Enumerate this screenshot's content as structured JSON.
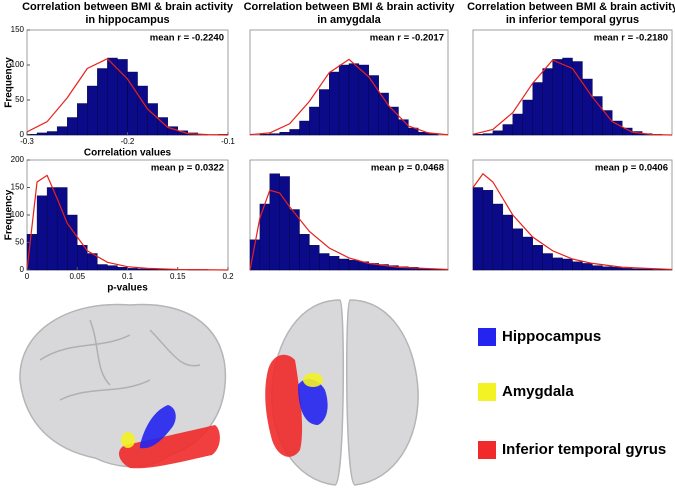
{
  "chart_data": [
    {
      "type": "histogram",
      "title": [
        "Correlation between BMI & brain activity",
        "in hippocampus"
      ],
      "annotation": "mean r = -0.2240",
      "xlabel": "Correlation values",
      "ylabel": "Frequency",
      "bins": [
        -0.3,
        -0.29,
        -0.28,
        -0.27,
        -0.26,
        -0.25,
        -0.24,
        -0.23,
        -0.22,
        -0.21,
        -0.2,
        -0.19,
        -0.18,
        -0.17,
        -0.16,
        -0.15,
        -0.14,
        -0.13,
        -0.12,
        -0.11,
        -0.1
      ],
      "values": [
        1,
        3,
        5,
        12,
        25,
        45,
        70,
        95,
        110,
        108,
        90,
        70,
        45,
        25,
        12,
        6,
        3,
        1,
        0,
        1
      ],
      "color": "#0b0b8a",
      "fit_x": [
        -0.3,
        -0.28,
        -0.26,
        -0.24,
        -0.22,
        -0.2,
        -0.18,
        -0.16,
        -0.14,
        -0.12,
        -0.1
      ],
      "fit_values": [
        4.5,
        19,
        53,
        95,
        109,
        80,
        37,
        11,
        2,
        0.5,
        0
      ],
      "fit_color": "#e8201a",
      "xlim": [
        -0.3,
        -0.1
      ],
      "ylim": [
        0,
        150
      ],
      "xticks": [
        -0.3,
        -0.2,
        -0.1
      ],
      "yticks": [
        0,
        50,
        100,
        150
      ]
    },
    {
      "type": "histogram",
      "title": [
        "Correlation between BMI & brain activity",
        "in amygdala"
      ],
      "annotation": "mean r = -0.2017",
      "bins": [
        -0.3,
        -0.29,
        -0.28,
        -0.27,
        -0.26,
        -0.25,
        -0.24,
        -0.23,
        -0.22,
        -0.21,
        -0.2,
        -0.19,
        -0.18,
        -0.17,
        -0.16,
        -0.15,
        -0.14,
        -0.13,
        -0.12,
        -0.11,
        -0.1
      ],
      "values": [
        0,
        1,
        2,
        4,
        8,
        20,
        40,
        65,
        90,
        100,
        102,
        100,
        85,
        60,
        40,
        22,
        10,
        4,
        2,
        0
      ],
      "color": "#0b0b8a",
      "fit_x": [
        -0.3,
        -0.28,
        -0.26,
        -0.24,
        -0.22,
        -0.2,
        -0.18,
        -0.16,
        -0.14,
        -0.12,
        -0.1
      ],
      "fit_values": [
        0.5,
        3,
        16,
        48,
        89,
        108,
        83,
        42,
        13,
        3,
        0.4
      ],
      "fit_color": "#e8201a",
      "xlim": [
        -0.3,
        -0.1
      ],
      "ylim": [
        0,
        150
      ]
    },
    {
      "type": "histogram",
      "title": [
        "Correlation between BMI & brain activity",
        "in inferior temporal gyrus"
      ],
      "annotation": "mean r = -0.2180",
      "bins": [
        -0.3,
        -0.29,
        -0.28,
        -0.27,
        -0.26,
        -0.25,
        -0.24,
        -0.23,
        -0.22,
        -0.21,
        -0.2,
        -0.19,
        -0.18,
        -0.17,
        -0.16,
        -0.15,
        -0.14,
        -0.13,
        -0.12,
        -0.11,
        -0.1
      ],
      "values": [
        1,
        2,
        6,
        15,
        30,
        50,
        75,
        95,
        108,
        110,
        105,
        80,
        55,
        35,
        20,
        10,
        5,
        2,
        1,
        0
      ],
      "color": "#0b0b8a",
      "fit_x": [
        -0.3,
        -0.28,
        -0.26,
        -0.24,
        -0.22,
        -0.2,
        -0.18,
        -0.16,
        -0.14,
        -0.12,
        -0.1
      ],
      "fit_values": [
        1,
        8,
        32,
        74,
        107,
        95,
        54,
        19,
        4,
        0.6,
        0
      ],
      "fit_color": "#e8201a",
      "xlim": [
        -0.3,
        -0.1
      ],
      "ylim": [
        0,
        150
      ]
    },
    {
      "type": "histogram",
      "annotation": "mean p = 0.0322",
      "xlabel": "p-values",
      "ylabel": "Frequency",
      "bins": [
        0,
        0.01,
        0.02,
        0.03,
        0.04,
        0.05,
        0.06,
        0.07,
        0.08,
        0.09,
        0.1,
        0.11,
        0.12,
        0.13,
        0.14,
        0.15,
        0.16,
        0.17,
        0.18,
        0.19,
        0.2
      ],
      "values": [
        65,
        135,
        150,
        150,
        100,
        45,
        30,
        10,
        8,
        5,
        3,
        2,
        2,
        1,
        1,
        0,
        1,
        1,
        0,
        0
      ],
      "color": "#0b0b8a",
      "fit_x": [
        0,
        0.01,
        0.02,
        0.03,
        0.04,
        0.06,
        0.08,
        0.1,
        0.12,
        0.15,
        0.2
      ],
      "fit_values": [
        0,
        160,
        172,
        130,
        85,
        35,
        14,
        6,
        3,
        1,
        0
      ],
      "fit_color": "#e8201a",
      "xlim": [
        0,
        0.2
      ],
      "ylim": [
        0,
        200
      ],
      "xticks": [
        0,
        0.05,
        0.1,
        0.15,
        0.2
      ],
      "yticks": [
        0,
        50,
        100,
        150,
        200
      ]
    },
    {
      "type": "histogram",
      "annotation": "mean p = 0.0468",
      "bins": [
        0,
        0.01,
        0.02,
        0.03,
        0.04,
        0.05,
        0.06,
        0.07,
        0.08,
        0.09,
        0.1,
        0.11,
        0.12,
        0.13,
        0.14,
        0.15,
        0.16,
        0.17,
        0.18,
        0.19,
        0.2
      ],
      "values": [
        55,
        120,
        175,
        170,
        110,
        65,
        45,
        30,
        25,
        20,
        18,
        15,
        12,
        10,
        8,
        6,
        5,
        3,
        2,
        1
      ],
      "color": "#0b0b8a",
      "fit_x": [
        0,
        0.01,
        0.02,
        0.03,
        0.04,
        0.06,
        0.08,
        0.1,
        0.12,
        0.15,
        0.2
      ],
      "fit_values": [
        0,
        95,
        145,
        140,
        115,
        70,
        40,
        22,
        12,
        5,
        1
      ],
      "fit_color": "#e8201a",
      "xlim": [
        0,
        0.2
      ],
      "ylim": [
        0,
        200
      ]
    },
    {
      "type": "histogram",
      "annotation": "mean p = 0.0406",
      "bins": [
        0,
        0.01,
        0.02,
        0.03,
        0.04,
        0.05,
        0.06,
        0.07,
        0.08,
        0.09,
        0.1,
        0.11,
        0.12,
        0.13,
        0.14,
        0.15,
        0.16,
        0.17,
        0.18,
        0.19,
        0.2
      ],
      "values": [
        150,
        145,
        120,
        100,
        75,
        60,
        45,
        30,
        22,
        20,
        15,
        12,
        8,
        6,
        5,
        3,
        2,
        2,
        1,
        1
      ],
      "color": "#0b0b8a",
      "fit_x": [
        0,
        0.01,
        0.02,
        0.03,
        0.04,
        0.06,
        0.08,
        0.1,
        0.12,
        0.15,
        0.2
      ],
      "fit_values": [
        150,
        175,
        160,
        130,
        100,
        60,
        35,
        20,
        12,
        5,
        1
      ],
      "fit_color": "#e8201a",
      "xlim": [
        0,
        0.2
      ],
      "ylim": [
        0,
        200
      ]
    }
  ],
  "legend": [
    {
      "label": "Hippocampus",
      "color": "#2424f0"
    },
    {
      "label": "Amygdala",
      "color": "#f2f224"
    },
    {
      "label": "Inferior temporal gyrus",
      "color": "#f02a2a"
    }
  ]
}
